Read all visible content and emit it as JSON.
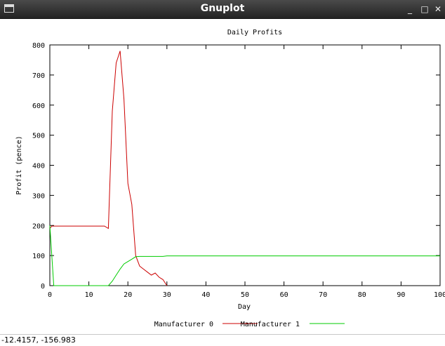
{
  "window": {
    "title": "Gnuplot",
    "minimize_glyph": "_",
    "maximize_glyph": "□",
    "close_glyph": "✕"
  },
  "status": {
    "coordinates": "-12.4157, -156.983"
  },
  "chart_data": {
    "type": "line",
    "title": "Daily Profits",
    "xlabel": "Day",
    "ylabel": "Profit (pence)",
    "xlim": [
      0,
      100
    ],
    "ylim": [
      0,
      800
    ],
    "xticks": [
      0,
      10,
      20,
      30,
      40,
      50,
      60,
      70,
      80,
      90,
      100
    ],
    "yticks": [
      0,
      100,
      200,
      300,
      400,
      500,
      600,
      700,
      800
    ],
    "grid": false,
    "legend_position": "bottom",
    "series": [
      {
        "name": "Manufacturer 0",
        "color": "#cc0000",
        "x": [
          0,
          0.5,
          1,
          2,
          3,
          4,
          5,
          6,
          7,
          8,
          9,
          10,
          11,
          12,
          13,
          14,
          15,
          16,
          17,
          18,
          19,
          20,
          21,
          22,
          23,
          24,
          25,
          26,
          27,
          28,
          29,
          30
        ],
        "y": [
          190,
          198,
          198,
          198,
          198,
          198,
          198,
          198,
          198,
          198,
          198,
          198,
          198,
          198,
          198,
          198,
          190,
          580,
          740,
          780,
          620,
          340,
          270,
          100,
          65,
          55,
          45,
          35,
          42,
          28,
          20,
          0
        ]
      },
      {
        "name": "Manufacturer 1",
        "color": "#00cc00",
        "x": [
          0,
          1,
          15,
          16,
          17,
          18,
          19,
          20,
          21,
          22,
          23,
          24,
          25,
          26,
          27,
          28,
          29,
          30,
          40,
          50,
          60,
          70,
          80,
          90,
          100
        ],
        "y": [
          200,
          0,
          0,
          15,
          35,
          55,
          72,
          80,
          88,
          96,
          97,
          97,
          97,
          97,
          97,
          97,
          97,
          99,
          99,
          99,
          99,
          99,
          99,
          99,
          99
        ]
      }
    ]
  }
}
